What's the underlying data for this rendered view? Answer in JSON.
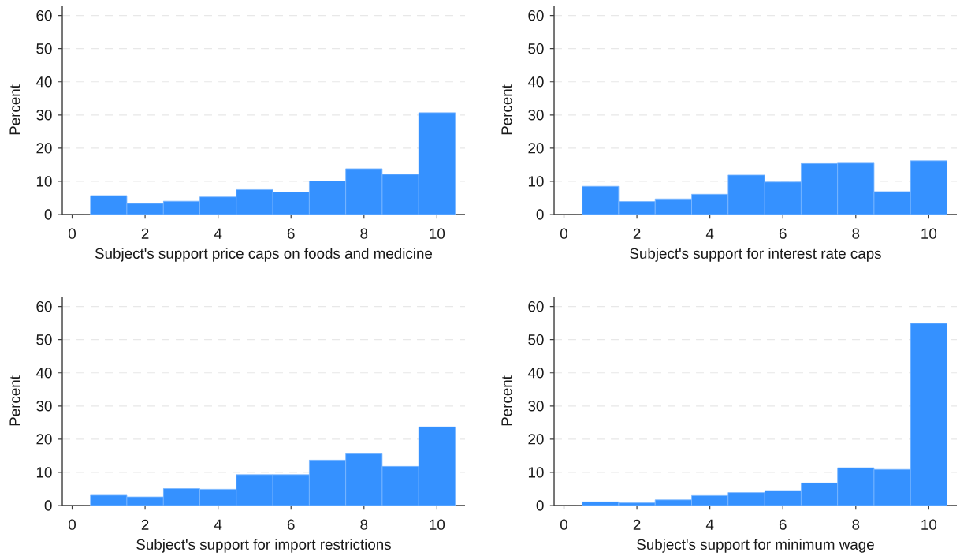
{
  "chart_data": [
    {
      "type": "histogram",
      "xlabel": "Subject's support price caps on foods and medicine",
      "ylabel": "Percent",
      "bins": [
        0.5,
        1.5,
        2.5,
        3.5,
        4.5,
        5.5,
        6.5,
        7.5,
        8.5,
        9.5,
        10.5
      ],
      "values": [
        5.7,
        3.3,
        4.0,
        5.3,
        7.5,
        6.8,
        10.1,
        13.8,
        12.1,
        30.7
      ],
      "color": "#3591ff",
      "xlim": [
        -0.27,
        10.77
      ],
      "ylim": [
        0,
        63
      ],
      "xticks": [
        0,
        2,
        4,
        6,
        8,
        10
      ],
      "yticks": [
        0,
        10,
        20,
        30,
        40,
        50,
        60
      ],
      "grid": "y"
    },
    {
      "type": "histogram",
      "xlabel": "Subject's support for interest rate caps",
      "ylabel": "Percent",
      "bins": [
        0.5,
        1.5,
        2.5,
        3.5,
        4.5,
        5.5,
        6.5,
        7.5,
        8.5,
        9.5,
        10.5
      ],
      "values": [
        8.5,
        3.9,
        4.7,
        6.1,
        11.9,
        9.8,
        15.4,
        15.5,
        6.9,
        16.2
      ],
      "color": "#3591ff",
      "xlim": [
        -0.27,
        10.77
      ],
      "ylim": [
        0,
        63
      ],
      "xticks": [
        0,
        2,
        4,
        6,
        8,
        10
      ],
      "yticks": [
        0,
        10,
        20,
        30,
        40,
        50,
        60
      ],
      "grid": "y"
    },
    {
      "type": "histogram",
      "xlabel": "Subject's support for import restrictions",
      "ylabel": "Percent",
      "bins": [
        0.5,
        1.5,
        2.5,
        3.5,
        4.5,
        5.5,
        6.5,
        7.5,
        8.5,
        9.5,
        10.5
      ],
      "values": [
        3.1,
        2.6,
        5.1,
        4.9,
        9.3,
        9.3,
        13.7,
        15.6,
        11.8,
        23.7
      ],
      "color": "#3591ff",
      "xlim": [
        -0.27,
        10.77
      ],
      "ylim": [
        0,
        63
      ],
      "xticks": [
        0,
        2,
        4,
        6,
        8,
        10
      ],
      "yticks": [
        0,
        10,
        20,
        30,
        40,
        50,
        60
      ],
      "grid": "y"
    },
    {
      "type": "histogram",
      "xlabel": "Subject's support for minimum wage",
      "ylabel": "Percent",
      "bins": [
        0.5,
        1.5,
        2.5,
        3.5,
        4.5,
        5.5,
        6.5,
        7.5,
        8.5,
        9.5,
        10.5
      ],
      "values": [
        1.1,
        0.8,
        1.7,
        3.0,
        3.9,
        4.5,
        6.8,
        11.4,
        10.9,
        54.9
      ],
      "color": "#3591ff",
      "xlim": [
        -0.27,
        10.77
      ],
      "ylim": [
        0,
        63
      ],
      "xticks": [
        0,
        2,
        4,
        6,
        8,
        10
      ],
      "yticks": [
        0,
        10,
        20,
        30,
        40,
        50,
        60
      ],
      "grid": "y"
    }
  ]
}
